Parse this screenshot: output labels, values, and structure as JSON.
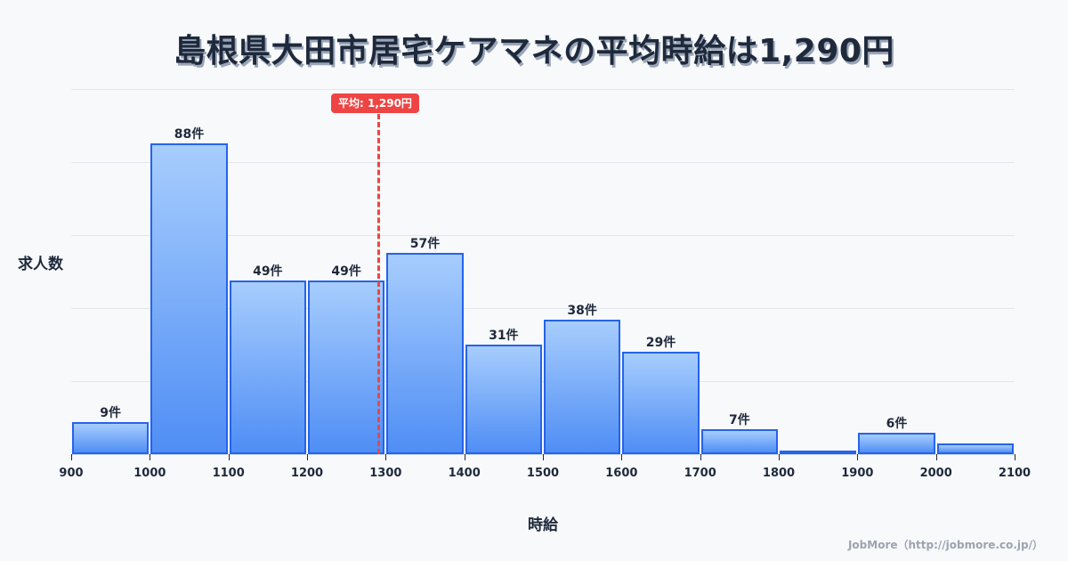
{
  "title": "島根県大田市居宅ケアマネの平均時給は1,290円",
  "average_badge": "平均: 1,290円",
  "y_axis_label": "求人数",
  "x_axis_label": "時給",
  "credit": "JobMore（http://jobmore.co.jp/）",
  "colors": {
    "bar_fill_top": "#a7cdfd",
    "bar_fill_bottom": "#4f8ef5",
    "bar_border": "#2563eb",
    "average_line": "#ef4444",
    "text": "#1e293b"
  },
  "bars": [
    {
      "range": "900-1000",
      "count": 9,
      "label": "9件"
    },
    {
      "range": "1000-1100",
      "count": 88,
      "label": "88件"
    },
    {
      "range": "1100-1200",
      "count": 49,
      "label": "49件"
    },
    {
      "range": "1200-1300",
      "count": 49,
      "label": "49件"
    },
    {
      "range": "1300-1400",
      "count": 57,
      "label": "57件"
    },
    {
      "range": "1400-1500",
      "count": 31,
      "label": "31件"
    },
    {
      "range": "1500-1600",
      "count": 38,
      "label": "38件"
    },
    {
      "range": "1600-1700",
      "count": 29,
      "label": "29件"
    },
    {
      "range": "1700-1800",
      "count": 7,
      "label": "7件"
    },
    {
      "range": "1800-1900",
      "count": 1,
      "label": ""
    },
    {
      "range": "1900-2000",
      "count": 6,
      "label": "6件"
    },
    {
      "range": "2000-2100",
      "count": 3,
      "label": ""
    }
  ],
  "x_ticks": [
    "900",
    "1000",
    "1100",
    "1200",
    "1300",
    "1400",
    "1500",
    "1600",
    "1700",
    "1800",
    "1900",
    "2000",
    "2100"
  ],
  "chart_data": {
    "type": "bar",
    "title": "島根県大田市居宅ケアマネの平均時給は1,290円",
    "xlabel": "時給",
    "ylabel": "求人数",
    "categories": [
      "900-1000",
      "1000-1100",
      "1100-1200",
      "1200-1300",
      "1300-1400",
      "1400-1500",
      "1500-1600",
      "1600-1700",
      "1700-1800",
      "1800-1900",
      "1900-2000",
      "2000-2100"
    ],
    "values": [
      9,
      88,
      49,
      49,
      57,
      31,
      38,
      29,
      7,
      1,
      6,
      3
    ],
    "data_labels": [
      "9件",
      "88件",
      "49件",
      "49件",
      "57件",
      "31件",
      "38件",
      "29件",
      "7件",
      "",
      "6件",
      ""
    ],
    "x_ticks": [
      900,
      1000,
      1100,
      1200,
      1300,
      1400,
      1500,
      1600,
      1700,
      1800,
      1900,
      2000,
      2100
    ],
    "xlim": [
      900,
      2100
    ],
    "ylim": [
      0,
      103
    ],
    "grid": true,
    "annotations": [
      {
        "type": "vline",
        "x": 1290,
        "label": "平均: 1,290円",
        "color": "#ef4444",
        "style": "dashed"
      }
    ],
    "legend": "none"
  }
}
